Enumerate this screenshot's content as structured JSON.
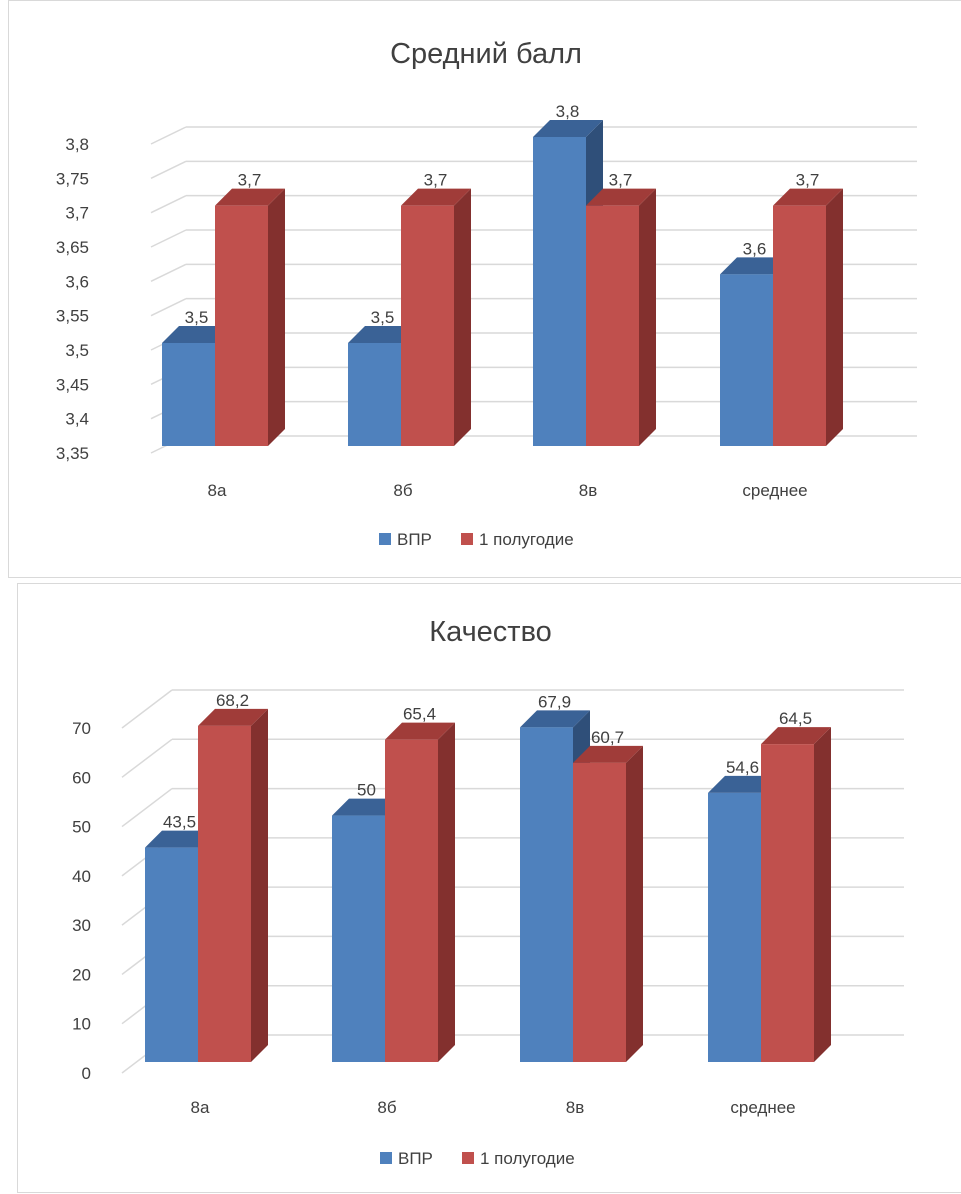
{
  "colors": {
    "series_blue": "#4f81bd",
    "series_blue_top": "#3a6296",
    "series_blue_side": "#2f4f79",
    "series_red": "#c0504d",
    "series_red_top": "#a03c39",
    "series_red_side": "#83302e",
    "grid": "#d9d9d9",
    "text": "#404040"
  },
  "chart_data": [
    {
      "type": "bar",
      "title": "Средний балл",
      "categories": [
        "8а",
        "8б",
        "8в",
        "среднее"
      ],
      "series": [
        {
          "name": "ВПР",
          "values": [
            3.5,
            3.5,
            3.8,
            3.6
          ],
          "labels": [
            "3,5",
            "3,5",
            "3,8",
            "3,6"
          ]
        },
        {
          "name": "1 полугодие",
          "values": [
            3.7,
            3.7,
            3.7,
            3.7
          ],
          "labels": [
            "3,7",
            "3,7",
            "3,7",
            "3,7"
          ]
        }
      ],
      "ylim": [
        3.35,
        3.8
      ],
      "yticks": [
        "3,35",
        "3,4",
        "3,45",
        "3,5",
        "3,55",
        "3,6",
        "3,65",
        "3,7",
        "3,75",
        "3,8"
      ],
      "grid": true,
      "legend_position": "bottom"
    },
    {
      "type": "bar",
      "title": "Качество",
      "categories": [
        "8а",
        "8б",
        "8в",
        "среднее"
      ],
      "series": [
        {
          "name": "ВПР",
          "values": [
            43.5,
            50,
            67.9,
            54.6
          ],
          "labels": [
            "43,5",
            "50",
            "67,9",
            "54,6"
          ]
        },
        {
          "name": "1 полугодие",
          "values": [
            68.2,
            65.4,
            60.7,
            64.5
          ],
          "labels": [
            "68,2",
            "65,4",
            "60,7",
            "64,5"
          ]
        }
      ],
      "ylim": [
        0,
        70
      ],
      "yticks": [
        "0",
        "10",
        "20",
        "30",
        "40",
        "50",
        "60",
        "70"
      ],
      "grid": true,
      "legend_position": "bottom"
    }
  ]
}
